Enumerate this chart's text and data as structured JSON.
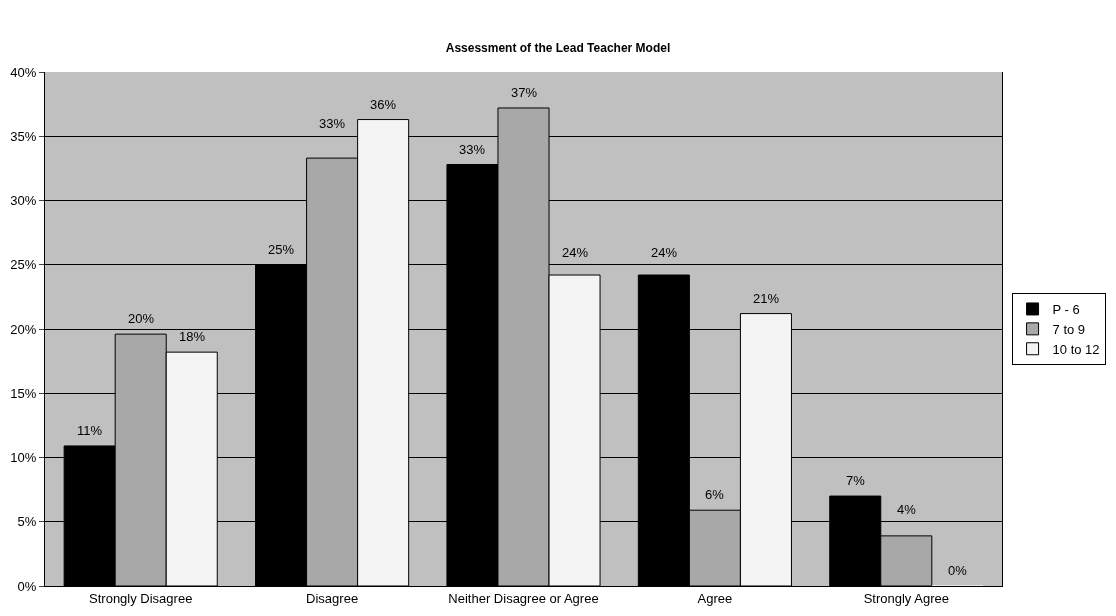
{
  "chart_data": {
    "type": "bar",
    "title": "Assessment of the Lead Teacher Model",
    "categories": [
      "Strongly Disagree",
      "Disagree",
      "Neither Disagree or Agree",
      "Agree",
      "Strongly Agree"
    ],
    "series": [
      {
        "name": "P - 6",
        "color": "#000000",
        "values": [
          10.9,
          25,
          32.8,
          24.2,
          7.0
        ],
        "value_labels": [
          "11%",
          "25%",
          "33%",
          "24%",
          "7%"
        ]
      },
      {
        "name": "7 to 9",
        "color": "#a8a8a8",
        "values": [
          19.6,
          33.3,
          37.2,
          5.9,
          3.9
        ],
        "value_labels": [
          "20%",
          "33%",
          "37%",
          "6%",
          "4%"
        ]
      },
      {
        "name": "10 to 12",
        "color": "#f4f4f4",
        "values": [
          18.2,
          36.3,
          24.2,
          21.2,
          0
        ],
        "value_labels": [
          "18%",
          "36%",
          "24%",
          "21%",
          "0%"
        ]
      }
    ],
    "ylim": [
      0,
      40
    ],
    "yticks": [
      {
        "value": 0,
        "label": "0%"
      },
      {
        "value": 5,
        "label": "5%"
      },
      {
        "value": 10,
        "label": "10%"
      },
      {
        "value": 15,
        "label": "15%"
      },
      {
        "value": 20,
        "label": "20%"
      },
      {
        "value": 25,
        "label": "25%"
      },
      {
        "value": 30,
        "label": "30%"
      },
      {
        "value": 35,
        "label": "35%"
      },
      {
        "value": 40,
        "label": "40%"
      }
    ],
    "grid": "y",
    "legend": "right"
  }
}
